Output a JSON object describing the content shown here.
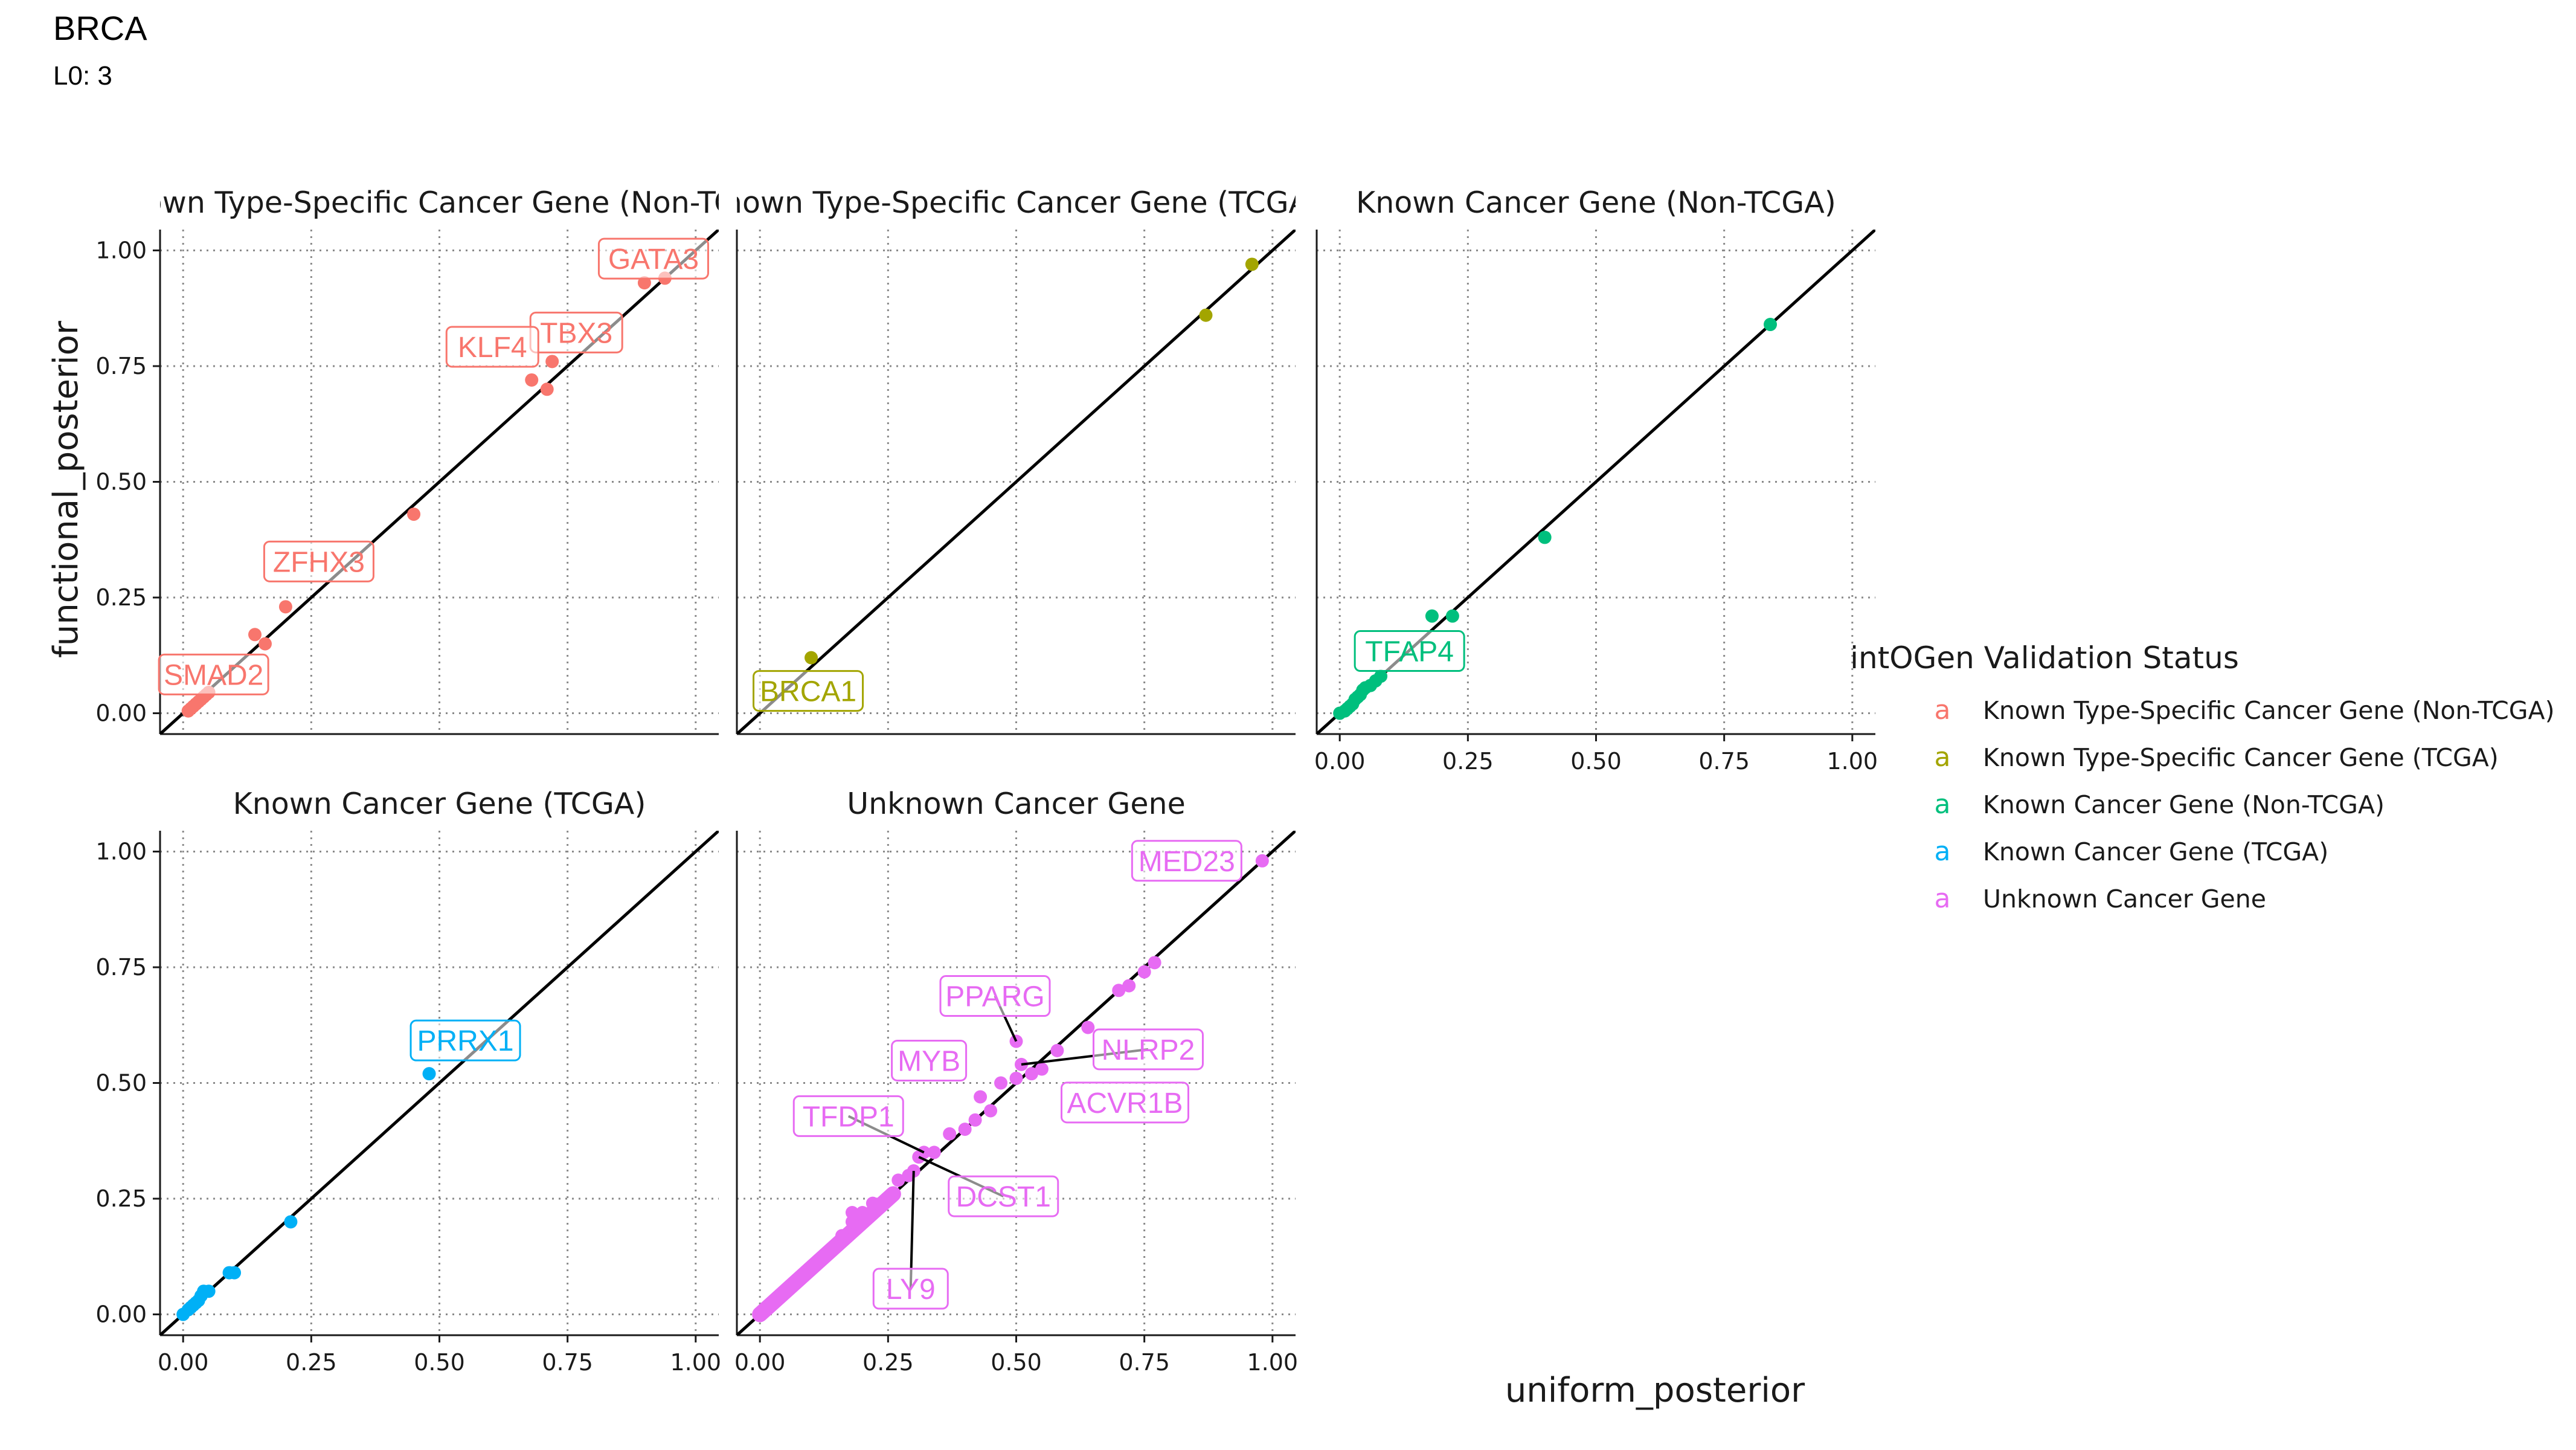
{
  "header": {
    "title": "BRCA",
    "subtitle": "L0: 3"
  },
  "colors": {
    "Known Type-Specific Cancer Gene (Non-TCGA)": "#F8766D",
    "Known Type-Specific Cancer Gene (TCGA)": "#A3A500",
    "Known Cancer Gene (Non-TCGA)": "#00BF7D",
    "Known Cancer Gene (TCGA)": "#00B0F6",
    "Unknown Cancer Gene": "#E76BF3"
  },
  "chart_data": {
    "type": "scatter",
    "xlabel": "uniform_posterior",
    "ylabel": "functional_posterior",
    "xlim": [
      0,
      1
    ],
    "ylim": [
      0,
      1
    ],
    "x_ticks": [
      "0.00",
      "0.25",
      "0.50",
      "0.75",
      "1.00"
    ],
    "y_ticks": [
      "0.00",
      "0.25",
      "0.50",
      "0.75",
      "1.00"
    ],
    "reference_line": "y = x",
    "grid": true,
    "legend": {
      "title": "intOGen Validation Status",
      "key_glyph": "a",
      "position": "right",
      "entries": [
        "Known Type-Specific Cancer Gene (Non-TCGA)",
        "Known Type-Specific Cancer Gene (TCGA)",
        "Known Cancer Gene (Non-TCGA)",
        "Known Cancer Gene (TCGA)",
        "Unknown Cancer Gene"
      ]
    },
    "facets": [
      {
        "strip": "Known Type-Specific Cancer Gene (Non-TCGA)",
        "strip_display": "own Type-Specific Cancer Gene (Non-TC",
        "series": "Known Type-Specific Cancer Gene (Non-TCGA)",
        "points": [
          [
            0.01,
            0.005
          ],
          [
            0.015,
            0.01
          ],
          [
            0.02,
            0.015
          ],
          [
            0.025,
            0.02
          ],
          [
            0.03,
            0.025
          ],
          [
            0.035,
            0.03
          ],
          [
            0.04,
            0.035
          ],
          [
            0.045,
            0.04
          ],
          [
            0.05,
            0.045
          ],
          [
            0.14,
            0.17
          ],
          [
            0.16,
            0.15
          ],
          [
            0.2,
            0.23
          ],
          [
            0.45,
            0.43
          ],
          [
            0.68,
            0.72
          ],
          [
            0.71,
            0.7
          ],
          [
            0.72,
            0.76
          ],
          [
            0.9,
            0.93
          ],
          [
            0.94,
            0.94
          ]
        ],
        "labels": [
          {
            "text": "GATA3",
            "x": 0.9,
            "y": 0.93
          },
          {
            "text": "TBX3",
            "x": 0.72,
            "y": 0.76
          },
          {
            "text": "KLF4",
            "x": 0.68,
            "y": 0.72
          },
          {
            "text": "ZFHX3",
            "x": 0.2,
            "y": 0.23
          },
          {
            "text": "SMAD2",
            "x": 0.03,
            "y": 0.025
          }
        ]
      },
      {
        "strip": "Known Type-Specific Cancer Gene (TCGA)",
        "strip_display": "nown Type-Specific Cancer Gene (TCGA",
        "series": "Known Type-Specific Cancer Gene (TCGA)",
        "points": [
          [
            0.1,
            0.12
          ],
          [
            0.87,
            0.86
          ],
          [
            0.96,
            0.97
          ]
        ],
        "labels": [
          {
            "text": "BRCA1",
            "x": 0.1,
            "y": 0.12
          }
        ]
      },
      {
        "strip": "Known Cancer Gene (Non-TCGA)",
        "strip_display": "Known Cancer Gene (Non-TCGA)",
        "series": "Known Cancer Gene (Non-TCGA)",
        "points": [
          [
            0.0,
            0.0
          ],
          [
            0.01,
            0.005
          ],
          [
            0.015,
            0.01
          ],
          [
            0.02,
            0.015
          ],
          [
            0.025,
            0.02
          ],
          [
            0.03,
            0.03
          ],
          [
            0.035,
            0.035
          ],
          [
            0.04,
            0.04
          ],
          [
            0.045,
            0.05
          ],
          [
            0.05,
            0.055
          ],
          [
            0.06,
            0.06
          ],
          [
            0.07,
            0.07
          ],
          [
            0.08,
            0.08
          ],
          [
            0.18,
            0.21
          ],
          [
            0.22,
            0.21
          ],
          [
            0.4,
            0.38
          ],
          [
            0.84,
            0.84
          ]
        ],
        "labels": [
          {
            "text": "TFAP4",
            "x": 0.03,
            "y": 0.03
          }
        ]
      },
      {
        "strip": "Known Cancer Gene (TCGA)",
        "strip_display": "Known Cancer Gene (TCGA)",
        "series": "Known Cancer Gene (TCGA)",
        "points": [
          [
            0.0,
            0.0
          ],
          [
            0.01,
            0.01
          ],
          [
            0.015,
            0.015
          ],
          [
            0.02,
            0.02
          ],
          [
            0.025,
            0.025
          ],
          [
            0.03,
            0.03
          ],
          [
            0.035,
            0.04
          ],
          [
            0.04,
            0.05
          ],
          [
            0.05,
            0.05
          ],
          [
            0.09,
            0.09
          ],
          [
            0.1,
            0.09
          ],
          [
            0.21,
            0.2
          ],
          [
            0.48,
            0.52
          ]
        ],
        "labels": [
          {
            "text": "PRRX1",
            "x": 0.48,
            "y": 0.52
          }
        ]
      },
      {
        "strip": "Unknown Cancer Gene",
        "strip_display": "Unknown Cancer Gene",
        "series": "Unknown Cancer Gene",
        "dense_diagonal": [
          0.0,
          0.26
        ],
        "points": [
          [
            0.12,
            0.12
          ],
          [
            0.14,
            0.14
          ],
          [
            0.16,
            0.17
          ],
          [
            0.18,
            0.2
          ],
          [
            0.18,
            0.22
          ],
          [
            0.2,
            0.22
          ],
          [
            0.21,
            0.21
          ],
          [
            0.22,
            0.24
          ],
          [
            0.25,
            0.25
          ],
          [
            0.27,
            0.29
          ],
          [
            0.29,
            0.3
          ],
          [
            0.3,
            0.31
          ],
          [
            0.31,
            0.34
          ],
          [
            0.32,
            0.35
          ],
          [
            0.34,
            0.35
          ],
          [
            0.37,
            0.39
          ],
          [
            0.4,
            0.4
          ],
          [
            0.42,
            0.42
          ],
          [
            0.43,
            0.47
          ],
          [
            0.45,
            0.44
          ],
          [
            0.47,
            0.5
          ],
          [
            0.5,
            0.51
          ],
          [
            0.5,
            0.59
          ],
          [
            0.51,
            0.54
          ],
          [
            0.53,
            0.52
          ],
          [
            0.55,
            0.53
          ],
          [
            0.58,
            0.57
          ],
          [
            0.64,
            0.62
          ],
          [
            0.7,
            0.7
          ],
          [
            0.72,
            0.71
          ],
          [
            0.75,
            0.74
          ],
          [
            0.77,
            0.76
          ],
          [
            0.98,
            0.98
          ]
        ],
        "labels": [
          {
            "text": "MED23",
            "x": 0.98,
            "y": 0.98
          },
          {
            "text": "PPARG",
            "x": 0.5,
            "y": 0.59
          },
          {
            "text": "NLRP2",
            "x": 0.51,
            "y": 0.54
          },
          {
            "text": "MYB",
            "x": 0.43,
            "y": 0.47
          },
          {
            "text": "ACVR1B",
            "x": 0.5,
            "y": 0.51
          },
          {
            "text": "TFDP1",
            "x": 0.32,
            "y": 0.35
          },
          {
            "text": "DCST1",
            "x": 0.31,
            "y": 0.34
          },
          {
            "text": "LY9",
            "x": 0.3,
            "y": 0.31
          }
        ]
      }
    ]
  }
}
